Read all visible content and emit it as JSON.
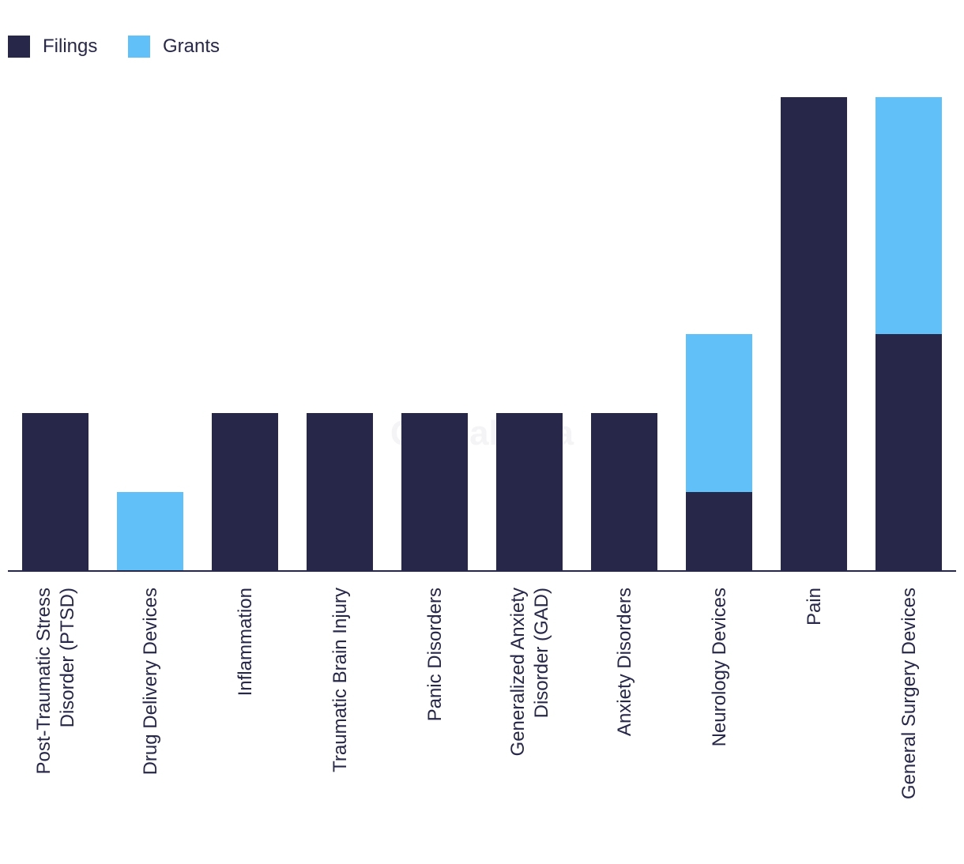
{
  "chart_data": {
    "type": "bar",
    "stacked": true,
    "title": "",
    "xlabel": "",
    "ylabel": "",
    "ylim": [
      0,
      6
    ],
    "grid": false,
    "legend_position": "top-left",
    "watermark": "GlobalData",
    "categories": [
      [
        "Post-Traumatic Stress",
        "Disorder (PTSD)"
      ],
      [
        "Drug Delivery Devices"
      ],
      [
        "Inflammation"
      ],
      [
        "Traumatic Brain Injury"
      ],
      [
        "Panic Disorders"
      ],
      [
        "Generalized Anxiety",
        "Disorder (GAD)"
      ],
      [
        "Anxiety Disorders"
      ],
      [
        "Neurology Devices"
      ],
      [
        "Pain"
      ],
      [
        "General Surgery Devices"
      ]
    ],
    "series": [
      {
        "name": "Filings",
        "color": "#262749",
        "values": [
          2,
          0,
          2,
          2,
          2,
          2,
          2,
          1,
          6,
          3
        ]
      },
      {
        "name": "Grants",
        "color": "#62C0F9",
        "values": [
          0,
          1,
          0,
          0,
          0,
          0,
          0,
          2,
          0,
          3
        ]
      }
    ]
  }
}
